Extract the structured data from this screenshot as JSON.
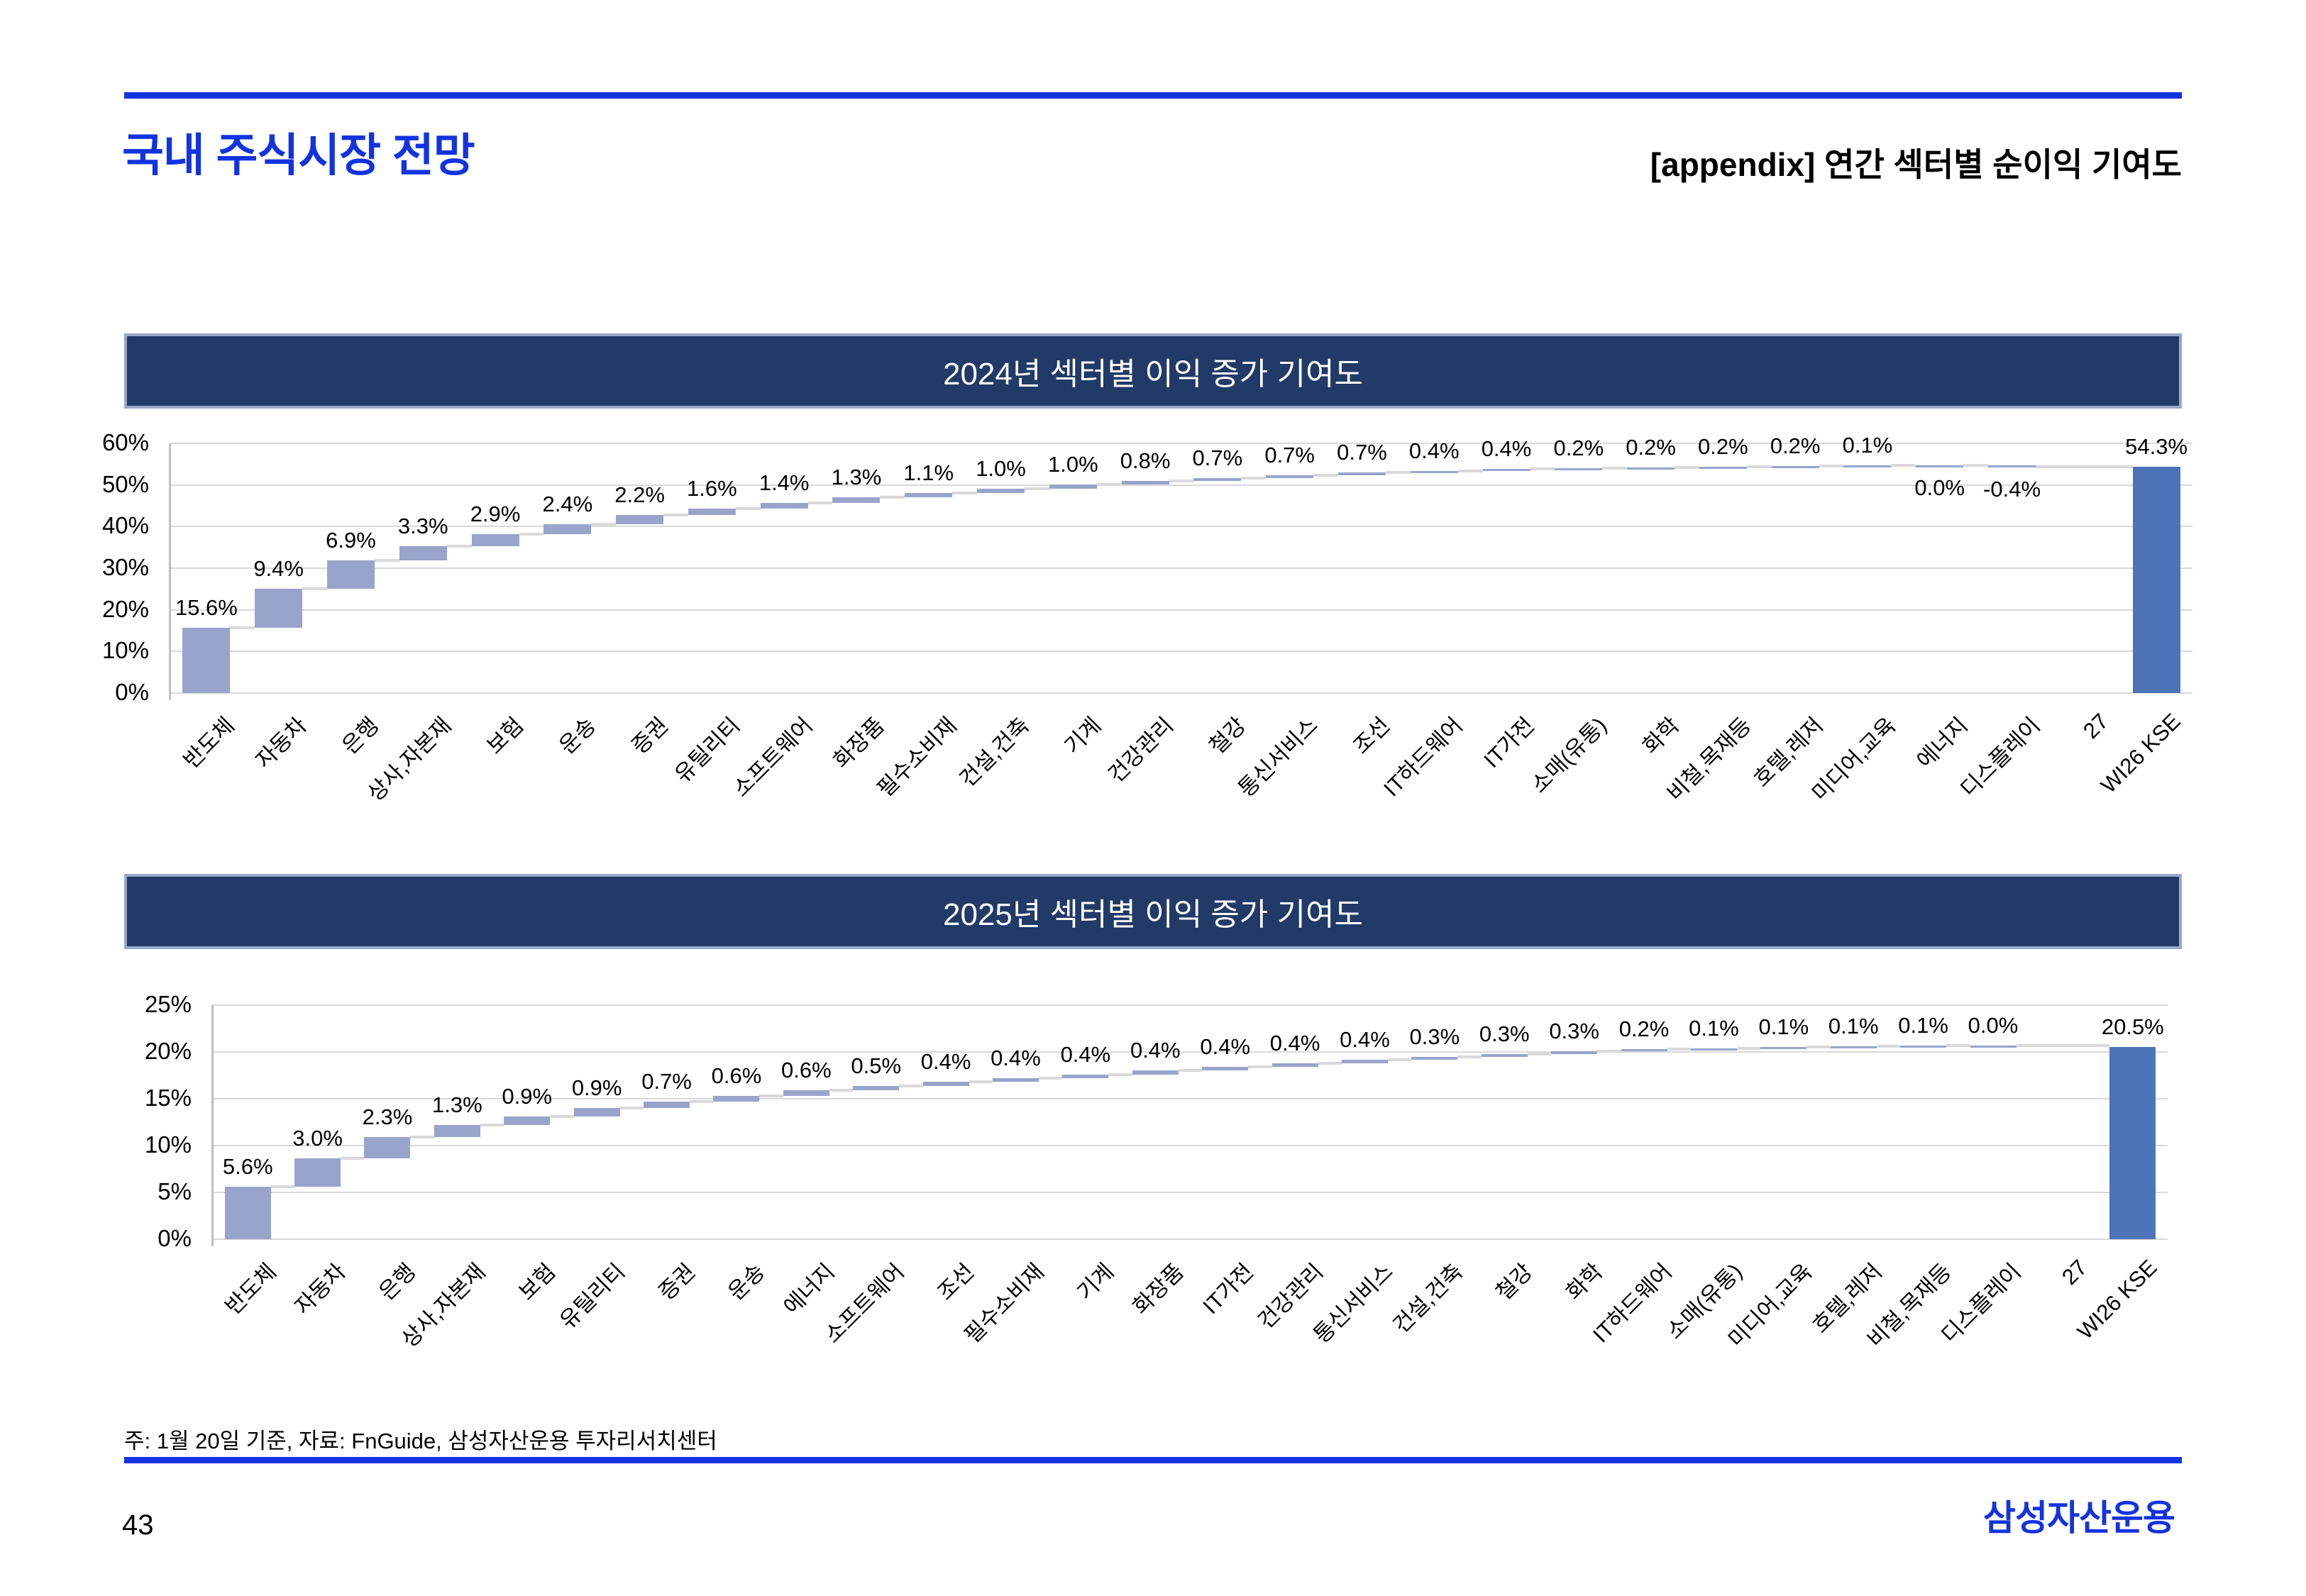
{
  "page": {
    "title": "국내 주식시장 전망",
    "subtitle": "[appendix] 연간 섹터별 순이익 기여도",
    "footnote": "주: 1월 20일 기준, 자료: FnGuide, 삼성자산운용 투자리서치센터",
    "page_number": "43",
    "logo": "삼성자산운용"
  },
  "colors": {
    "accent": "#1233e0",
    "header_bg": "#213a67",
    "bar": "#99a4cc",
    "total_bar": "#4d74b9",
    "connector": "#d9d9d9",
    "gridline": "#d9d9d9",
    "axis": "#bfbfbf"
  },
  "chart_data": [
    {
      "type": "bar",
      "subtype": "waterfall",
      "title": "2024년 섹터별 이익 증가 기여도",
      "categories": [
        "반도체",
        "자동차",
        "은행",
        "상사,자본재",
        "보험",
        "운송",
        "증권",
        "유틸리티",
        "소프트웨어",
        "화장품",
        "필수소비재",
        "건설,건축",
        "기계",
        "건강관리",
        "철강",
        "통신서비스",
        "조선",
        "IT하드웨어",
        "IT가전",
        "소매(유통)",
        "화학",
        "비철,목재등",
        "호텔,레저",
        "미디어,교육",
        "에너지",
        "디스플레이",
        "27",
        "WI26 KSE"
      ],
      "values": [
        15.6,
        9.4,
        6.9,
        3.3,
        2.9,
        2.4,
        2.2,
        1.6,
        1.4,
        1.3,
        1.1,
        1.0,
        1.0,
        0.8,
        0.7,
        0.7,
        0.7,
        0.4,
        0.4,
        0.2,
        0.2,
        0.2,
        0.2,
        0.1,
        0.0,
        -0.4,
        null,
        54.3
      ],
      "total_index": 27,
      "ylim": [
        0,
        60
      ],
      "ytick_step": 10,
      "below_label_indices": [
        24,
        25
      ],
      "legend": "none",
      "grid": "horizontal"
    },
    {
      "type": "bar",
      "subtype": "waterfall",
      "title": "2025년 섹터별 이익 증가 기여도",
      "categories": [
        "반도체",
        "자동차",
        "은행",
        "상사,자본재",
        "보험",
        "유틸리티",
        "증권",
        "운송",
        "에너지",
        "소프트웨어",
        "조선",
        "필수소비재",
        "기계",
        "화장품",
        "IT가전",
        "건강관리",
        "통신서비스",
        "건설,건축",
        "철강",
        "화학",
        "IT하드웨어",
        "소매(유통)",
        "미디어,교육",
        "호텔,레저",
        "비철,목재등",
        "디스플레이",
        "27",
        "WI26 KSE"
      ],
      "values": [
        5.6,
        3.0,
        2.3,
        1.3,
        0.9,
        0.9,
        0.7,
        0.6,
        0.6,
        0.5,
        0.4,
        0.4,
        0.4,
        0.4,
        0.4,
        0.4,
        0.4,
        0.3,
        0.3,
        0.3,
        0.2,
        0.1,
        0.1,
        0.1,
        0.1,
        0.0,
        null,
        20.5
      ],
      "total_index": 27,
      "ylim": [
        0,
        25
      ],
      "ytick_step": 5,
      "below_label_indices": [],
      "legend": "none",
      "grid": "horizontal"
    }
  ]
}
